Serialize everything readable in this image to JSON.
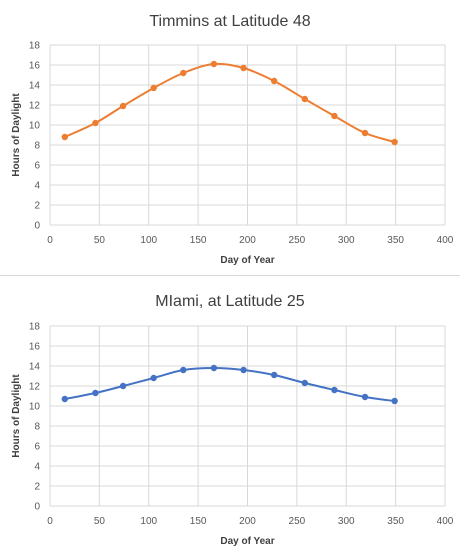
{
  "chart_data": [
    {
      "type": "line",
      "title": "Timmins at Latitude 48",
      "xlabel": "Day of Year",
      "ylabel": "Hours of Daylight",
      "xlim": [
        0,
        400
      ],
      "ylim": [
        0,
        18
      ],
      "xticks": [
        0,
        50,
        100,
        150,
        200,
        250,
        300,
        350,
        400
      ],
      "yticks": [
        0,
        2,
        4,
        6,
        8,
        10,
        12,
        14,
        16,
        18
      ],
      "grid": true,
      "smooth": true,
      "color": "#ED7D31",
      "series": [
        {
          "x": [
            15,
            46,
            74,
            105,
            135,
            166,
            196,
            227,
            258,
            288,
            319,
            349
          ],
          "y": [
            8.8,
            10.2,
            11.9,
            13.7,
            15.2,
            16.1,
            15.7,
            14.4,
            12.6,
            10.9,
            9.2,
            8.3
          ]
        }
      ]
    },
    {
      "type": "line",
      "title": "MIami, at Latitude 25",
      "xlabel": "Day of Year",
      "ylabel": "Hours of  Daylight",
      "xlim": [
        0,
        400
      ],
      "ylim": [
        0,
        18
      ],
      "xticks": [
        0,
        50,
        100,
        150,
        200,
        250,
        300,
        350,
        400
      ],
      "yticks": [
        0,
        2,
        4,
        6,
        8,
        10,
        12,
        14,
        16,
        18
      ],
      "grid": true,
      "smooth": true,
      "color": "#4472C4",
      "series": [
        {
          "x": [
            15,
            46,
            74,
            105,
            135,
            166,
            196,
            227,
            258,
            288,
            319,
            349
          ],
          "y": [
            10.7,
            11.3,
            12.0,
            12.8,
            13.6,
            13.8,
            13.6,
            13.1,
            12.3,
            11.6,
            10.9,
            10.5
          ]
        }
      ]
    }
  ]
}
